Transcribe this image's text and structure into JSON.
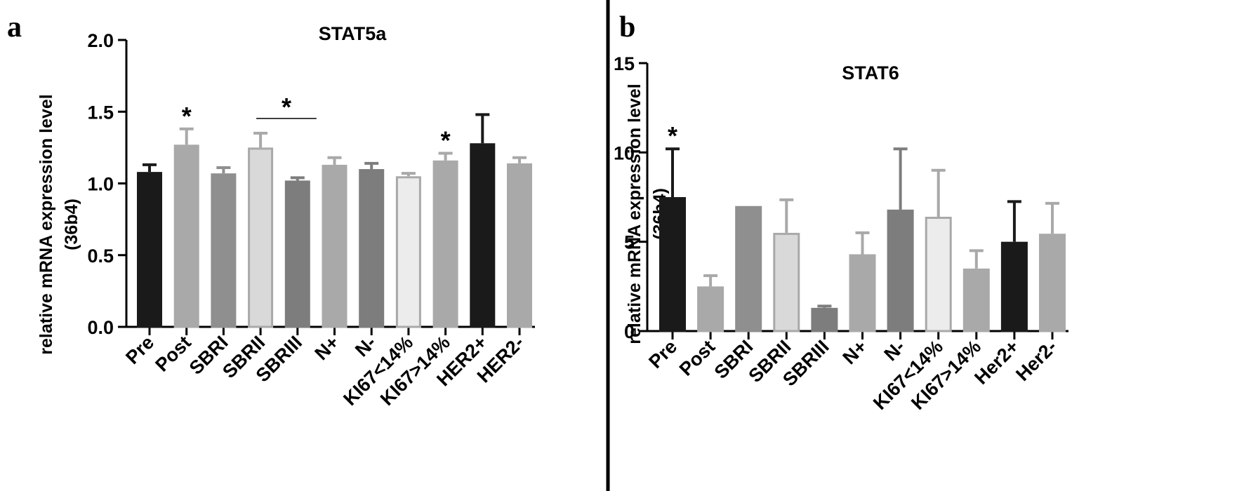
{
  "figure": {
    "divider_color": "#000000"
  },
  "chart_data": [
    {
      "panel": "a",
      "type": "bar",
      "title": "STAT5a",
      "ylabel_line1": "relative mRNA expression level",
      "ylabel_line2": "(36b4)",
      "xlabel": "",
      "ylim": [
        0,
        2.0
      ],
      "yticks": [
        "0.0",
        "0.5",
        "1.0",
        "1.5",
        "2.0"
      ],
      "ytick_values": [
        0,
        0.5,
        1.0,
        1.5,
        2.0
      ],
      "categories": [
        "Pre",
        "Post",
        "SBRI",
        "SBRII",
        "SBRIII",
        "N+",
        "N-",
        "KI67<14%",
        "KI67>14%",
        "HER2+",
        "HER2-"
      ],
      "values": [
        1.08,
        1.27,
        1.07,
        1.25,
        1.02,
        1.13,
        1.1,
        1.05,
        1.16,
        1.28,
        1.14
      ],
      "errors": [
        0.05,
        0.11,
        0.04,
        0.1,
        0.02,
        0.05,
        0.04,
        0.02,
        0.05,
        0.2,
        0.04
      ],
      "fills": [
        "#1a1a1a",
        "#a9a9a9",
        "#8f8f8f",
        "#d9d9d9",
        "#7d7d7d",
        "#a9a9a9",
        "#7d7d7d",
        "#ececec",
        "#a9a9a9",
        "#1a1a1a",
        "#a9a9a9"
      ],
      "outlines": [
        "#1a1a1a",
        "#a9a9a9",
        "#8f8f8f",
        "#a9a9a9",
        "#7d7d7d",
        "#a9a9a9",
        "#7d7d7d",
        "#a9a9a9",
        "#a9a9a9",
        "#1a1a1a",
        "#a9a9a9"
      ],
      "significance": [
        {
          "type": "star",
          "index": 1,
          "label": "*"
        },
        {
          "type": "bracket",
          "from": 3,
          "to": 4,
          "label": "*"
        },
        {
          "type": "star",
          "index": 8,
          "label": "*"
        }
      ]
    },
    {
      "panel": "b",
      "type": "bar",
      "title": "STAT6",
      "ylabel_line1": "relative mRNA expression level",
      "ylabel_line2": "(36b4)",
      "xlabel": "",
      "ylim": [
        0,
        15
      ],
      "yticks": [
        "0",
        "5",
        "10",
        "15"
      ],
      "ytick_values": [
        0,
        5,
        10,
        15
      ],
      "categories": [
        "Pre",
        "Post",
        "SBRI",
        "SBRII",
        "SBRIII",
        "N+",
        "N-",
        "KI67<14%",
        "KI67>14%",
        "Her2+",
        "Her2-"
      ],
      "values": [
        7.5,
        2.5,
        7.0,
        5.5,
        1.3,
        4.3,
        6.8,
        6.4,
        3.5,
        5.0,
        5.45
      ],
      "errors": [
        2.7,
        0.6,
        0.0,
        1.85,
        0.1,
        1.2,
        3.4,
        2.6,
        1.0,
        2.25,
        1.7
      ],
      "fills": [
        "#1a1a1a",
        "#a9a9a9",
        "#8f8f8f",
        "#d9d9d9",
        "#7d7d7d",
        "#a9a9a9",
        "#7d7d7d",
        "#ececec",
        "#a9a9a9",
        "#1a1a1a",
        "#a9a9a9"
      ],
      "outlines": [
        "#1a1a1a",
        "#a9a9a9",
        "#8f8f8f",
        "#a9a9a9",
        "#7d7d7d",
        "#a9a9a9",
        "#7d7d7d",
        "#a9a9a9",
        "#a9a9a9",
        "#1a1a1a",
        "#a9a9a9"
      ],
      "significance": [
        {
          "type": "star",
          "index": 0,
          "label": "*"
        }
      ]
    }
  ]
}
